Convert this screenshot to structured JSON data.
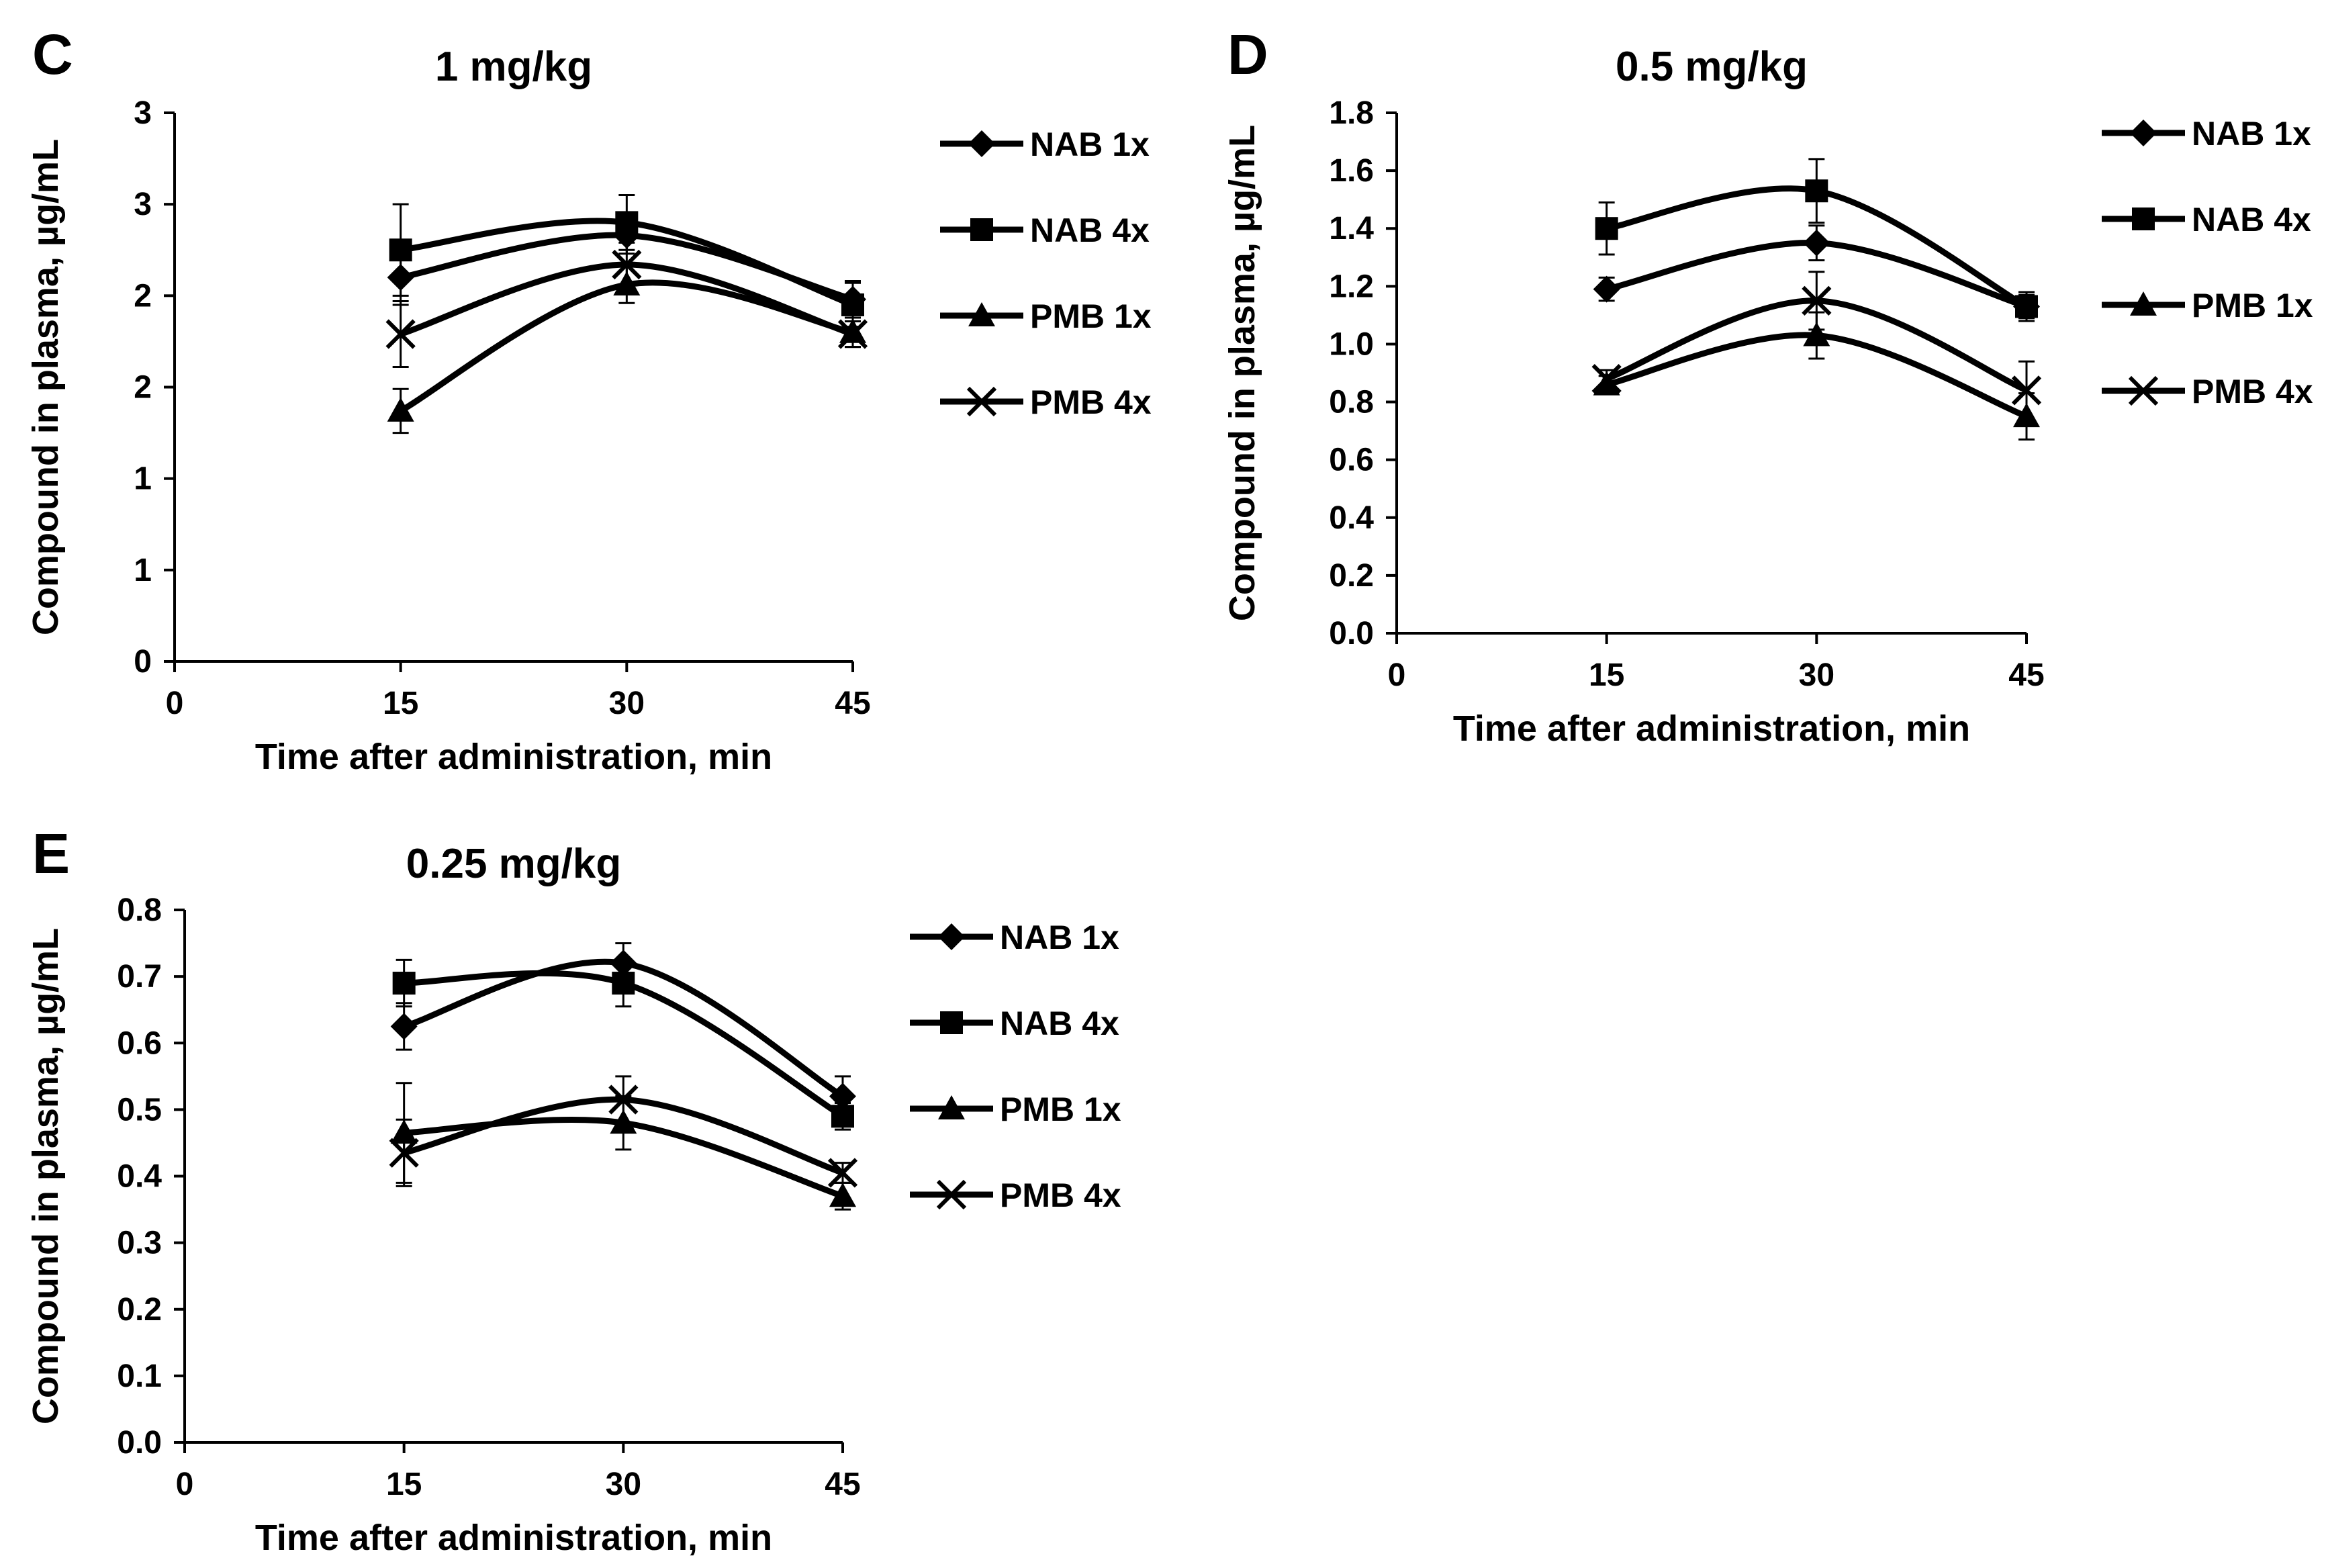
{
  "chart_data": [
    {
      "panel": "C",
      "type": "line",
      "title": "1 mg/kg",
      "xlabel": "Time after administration, min",
      "ylabel": "Compound in plasma, µg/mL",
      "xlim": [
        0,
        45
      ],
      "ylim": [
        0,
        3
      ],
      "x_ticks": [
        0,
        15,
        30,
        45
      ],
      "y_ticks": [
        0,
        0.5,
        1,
        1.5,
        2,
        2.5,
        3
      ],
      "y_tick_labels": [
        "0",
        "1",
        "1",
        "2",
        "2",
        "3",
        "3"
      ],
      "x": [
        15,
        30,
        45
      ],
      "series": [
        {
          "name": "NAB 1x",
          "marker": "diamond",
          "values": [
            2.1,
            2.33,
            1.98
          ],
          "errors": [
            0.15,
            0.1,
            0.1
          ]
        },
        {
          "name": "NAB 4x",
          "marker": "square",
          "values": [
            2.25,
            2.4,
            1.95
          ],
          "errors": [
            0.25,
            0.15,
            0.12
          ]
        },
        {
          "name": "PMB 1x",
          "marker": "triangle",
          "values": [
            1.37,
            2.06,
            1.8
          ],
          "errors": [
            0.12,
            0.1,
            0.08
          ]
        },
        {
          "name": "PMB 4x",
          "marker": "x",
          "values": [
            1.79,
            2.17,
            1.79
          ],
          "errors": [
            0.18,
            0.12,
            0.07
          ]
        }
      ]
    },
    {
      "panel": "D",
      "type": "line",
      "title": "0.5 mg/kg",
      "xlabel": "Time after administration, min",
      "ylabel": "Compound in plasma, µg/mL",
      "xlim": [
        0,
        45
      ],
      "ylim": [
        0,
        1.8
      ],
      "x_ticks": [
        0,
        15,
        30,
        45
      ],
      "y_ticks": [
        0,
        0.2,
        0.4,
        0.6,
        0.8,
        1.0,
        1.2,
        1.4,
        1.6,
        1.8
      ],
      "y_tick_labels": [
        "0.0",
        "0.2",
        "0.4",
        "0.6",
        "0.8",
        "1.0",
        "1.2",
        "1.4",
        "1.6",
        "1.8"
      ],
      "x": [
        15,
        30,
        45
      ],
      "series": [
        {
          "name": "NAB 1x",
          "marker": "diamond",
          "values": [
            1.19,
            1.35,
            1.13
          ],
          "errors": [
            0.04,
            0.06,
            0.04
          ]
        },
        {
          "name": "NAB 4x",
          "marker": "square",
          "values": [
            1.4,
            1.53,
            1.13
          ],
          "errors": [
            0.09,
            0.11,
            0.05
          ]
        },
        {
          "name": "PMB 1x",
          "marker": "triangle",
          "values": [
            0.86,
            1.03,
            0.75
          ],
          "errors": [
            0.03,
            0.08,
            0.08
          ]
        },
        {
          "name": "PMB 4x",
          "marker": "x",
          "values": [
            0.88,
            1.15,
            0.84
          ],
          "errors": [
            0.03,
            0.1,
            0.1
          ]
        }
      ]
    },
    {
      "panel": "E",
      "type": "line",
      "title": "0.25 mg/kg",
      "xlabel": "Time after administration, min",
      "ylabel": "Compound in plasma, µg/mL",
      "xlim": [
        0,
        45
      ],
      "ylim": [
        0,
        0.8
      ],
      "x_ticks": [
        0,
        15,
        30,
        45
      ],
      "y_ticks": [
        0,
        0.1,
        0.2,
        0.3,
        0.4,
        0.5,
        0.6,
        0.7,
        0.8
      ],
      "y_tick_labels": [
        "0.0",
        "0.1",
        "0.2",
        "0.3",
        "0.4",
        "0.5",
        "0.6",
        "0.7",
        "0.8"
      ],
      "x": [
        15,
        30,
        45
      ],
      "series": [
        {
          "name": "NAB 1x",
          "marker": "diamond",
          "values": [
            0.625,
            0.72,
            0.52
          ],
          "errors": [
            0.035,
            0.03,
            0.03
          ]
        },
        {
          "name": "NAB 4x",
          "marker": "square",
          "values": [
            0.69,
            0.69,
            0.49
          ],
          "errors": [
            0.035,
            0.035,
            0.02
          ]
        },
        {
          "name": "PMB 1x",
          "marker": "triangle",
          "values": [
            0.465,
            0.48,
            0.37
          ],
          "errors": [
            0.075,
            0.04,
            0.02
          ]
        },
        {
          "name": "PMB 4x",
          "marker": "x",
          "values": [
            0.435,
            0.515,
            0.405
          ],
          "errors": [
            0.05,
            0.035,
            0.015
          ]
        }
      ]
    }
  ]
}
